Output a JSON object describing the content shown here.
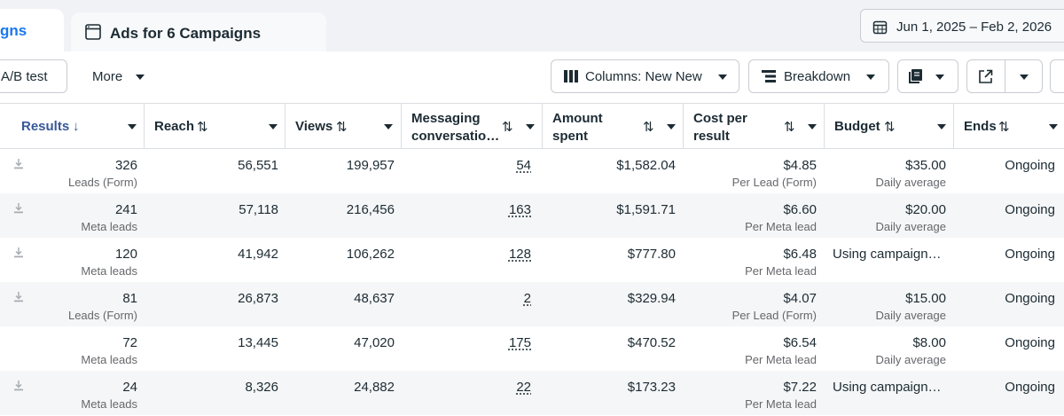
{
  "tabs": {
    "active_label": "gns",
    "second_label": "Ads for 6 Campaigns"
  },
  "date_range": "Jun 1, 2025 – Feb 2, 2026",
  "toolbar": {
    "ab_test": "A/B test",
    "more": "More",
    "columns": "Columns: New New",
    "breakdown": "Breakdown"
  },
  "columns": {
    "results": "Results",
    "reach": "Reach",
    "views": "Views",
    "messaging_1": "Messaging",
    "messaging_2": "conversatio…",
    "amount_1": "Amount",
    "amount_2": "spent",
    "cpr_1": "Cost per",
    "cpr_2": "result",
    "budget": "Budget",
    "ends": "Ends"
  },
  "rows": [
    {
      "results": "326",
      "results_sub": "Leads (Form)",
      "reach": "56,551",
      "views": "199,957",
      "messaging": "54",
      "spent": "$1,582.04",
      "cpr": "$4.85",
      "cpr_sub": "Per Lead (Form)",
      "budget": "$35.00",
      "budget_sub": "Daily average",
      "ends": "Ongoing",
      "download_icon": true,
      "shaded": false
    },
    {
      "results": "241",
      "results_sub": "Meta leads",
      "reach": "57,118",
      "views": "216,456",
      "messaging": "163",
      "spent": "$1,591.71",
      "cpr": "$6.60",
      "cpr_sub": "Per Meta lead",
      "budget": "$20.00",
      "budget_sub": "Daily average",
      "ends": "Ongoing",
      "download_icon": true,
      "shaded": true
    },
    {
      "results": "120",
      "results_sub": "Meta leads",
      "reach": "41,942",
      "views": "106,262",
      "messaging": "128",
      "spent": "$777.80",
      "cpr": "$6.48",
      "cpr_sub": "Per Meta lead",
      "budget": "Using campaign…",
      "budget_sub": "",
      "ends": "Ongoing",
      "download_icon": true,
      "shaded": false
    },
    {
      "results": "81",
      "results_sub": "Leads (Form)",
      "reach": "26,873",
      "views": "48,637",
      "messaging": "2",
      "spent": "$329.94",
      "cpr": "$4.07",
      "cpr_sub": "Per Lead (Form)",
      "budget": "$15.00",
      "budget_sub": "Daily average",
      "ends": "Ongoing",
      "download_icon": true,
      "shaded": true
    },
    {
      "results": "72",
      "results_sub": "Meta leads",
      "reach": "13,445",
      "views": "47,020",
      "messaging": "175",
      "spent": "$470.52",
      "cpr": "$6.54",
      "cpr_sub": "Per Meta lead",
      "budget": "$8.00",
      "budget_sub": "Daily average",
      "ends": "Ongoing",
      "download_icon": false,
      "shaded": false
    },
    {
      "results": "24",
      "results_sub": "Meta leads",
      "reach": "8,326",
      "views": "24,882",
      "messaging": "22",
      "spent": "$173.23",
      "cpr": "$7.22",
      "cpr_sub": "Per Meta lead",
      "budget": "Using campaign…",
      "budget_sub": "",
      "ends": "Ongoing",
      "download_icon": true,
      "shaded": true
    }
  ],
  "colors": {
    "accent": "#1877f2",
    "text": "#1c2b33",
    "muted": "#65676b",
    "row_shade": "#f5f6f7",
    "border": "#dadde1"
  },
  "icons": [
    "calendar-icon",
    "ad-frame-icon",
    "columns-icon",
    "breakdown-icon",
    "reports-icon",
    "export-icon",
    "download-icon",
    "sort-arrows-icon",
    "sort-down-icon",
    "chevron-down-icon"
  ]
}
